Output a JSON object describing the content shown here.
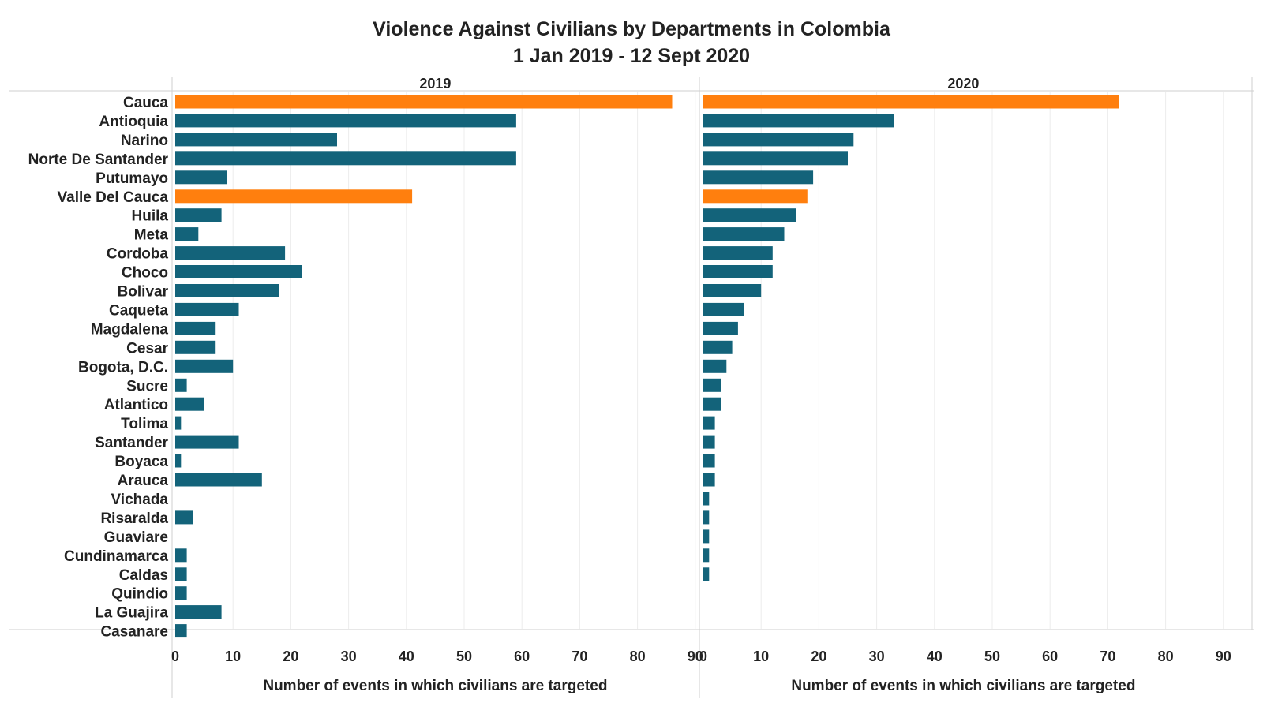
{
  "chart_data": {
    "type": "bar",
    "orientation": "horizontal",
    "title": "Violence Against Civilians by Departments in Colombia",
    "subtitle": "1 Jan 2019 - 12 Sept 2020",
    "categories": [
      "Cauca",
      "Antioquia",
      "Narino",
      "Norte De Santander",
      "Putumayo",
      "Valle Del Cauca",
      "Huila",
      "Meta",
      "Cordoba",
      "Choco",
      "Bolivar",
      "Caqueta",
      "Magdalena",
      "Cesar",
      "Bogota, D.C.",
      "Sucre",
      "Atlantico",
      "Tolima",
      "Santander",
      "Boyaca",
      "Arauca",
      "Vichada",
      "Risaralda",
      "Guaviare",
      "Cundinamarca",
      "Caldas",
      "Quindio",
      "La Guajira",
      "Casanare"
    ],
    "xlabel": "Number of events in which civilians are targeted",
    "xlim": [
      0,
      90
    ],
    "xticks": [
      0,
      10,
      20,
      30,
      40,
      50,
      60,
      70,
      80,
      90
    ],
    "grid": true,
    "colors": {
      "default": "#13637a",
      "highlight": "#ff7f0e"
    },
    "highlighted": [
      "Cauca",
      "Valle Del Cauca"
    ],
    "panels": [
      {
        "name": "2019",
        "values": [
          86,
          59,
          28,
          59,
          9,
          41,
          8,
          4,
          19,
          22,
          18,
          11,
          7,
          7,
          10,
          2,
          5,
          1,
          11,
          1,
          15,
          0,
          3,
          0,
          2,
          2,
          2,
          8,
          2
        ]
      },
      {
        "name": "2020",
        "values": [
          72,
          33,
          26,
          25,
          19,
          18,
          16,
          14,
          12,
          12,
          10,
          7,
          6,
          5,
          4,
          3,
          3,
          2,
          2,
          2,
          2,
          1,
          1,
          1,
          1,
          1,
          0,
          0,
          0
        ]
      }
    ]
  }
}
